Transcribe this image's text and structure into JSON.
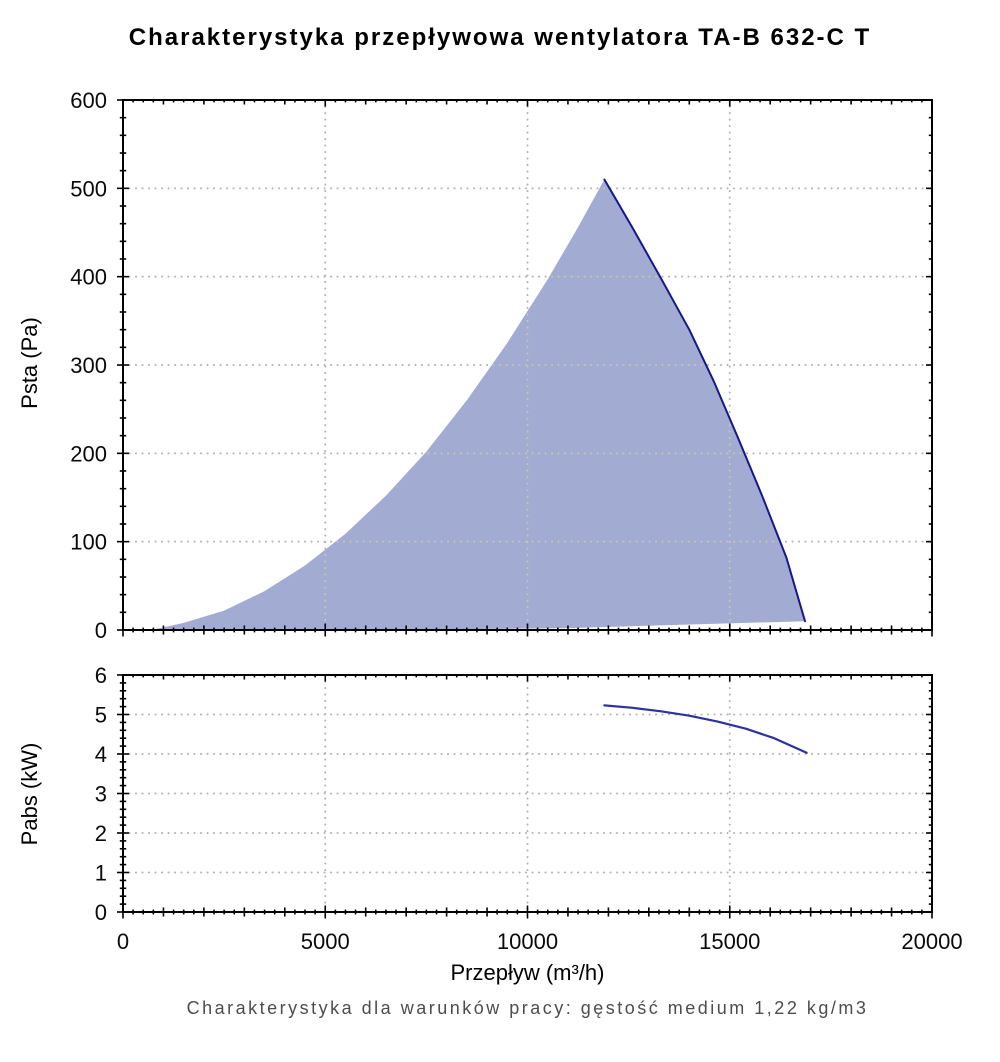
{
  "page": {
    "title": "Charakterystyka przepływowa wentylatora TA-B 632-C T",
    "xlabel": "Przepływ (m³/h)",
    "caption": "Charakterystyka dla warunków pracy: gęstość medium 1,22 kg/m3"
  },
  "colors": {
    "envelope_fill": "#a2abd2",
    "envelope_edge": "#14188e",
    "power_line": "#2c31a3",
    "grid": "#b3b3b3",
    "grid_on_fill": "#cdc6a4",
    "axis": "#000000",
    "tick_label": "#0a0a0a",
    "caption_text": "#4d4d4d"
  },
  "chart_data": [
    {
      "type": "area",
      "name": "fan-pressure-envelope-chart",
      "ylabel": "Psta (Pa)",
      "xlim": [
        0,
        20000
      ],
      "ylim": [
        0,
        600
      ],
      "grid": "dotted",
      "xticks": [
        {
          "v": 0,
          "label": "0"
        },
        {
          "v": 5000,
          "label": "5000"
        },
        {
          "v": 10000,
          "label": "10000"
        },
        {
          "v": 15000,
          "label": "15000"
        },
        {
          "v": 20000,
          "label": "20000"
        }
      ],
      "show_x_labels": false,
      "yticks": [
        {
          "v": 0,
          "label": "0"
        },
        {
          "v": 100,
          "label": "100"
        },
        {
          "v": 200,
          "label": "200"
        },
        {
          "v": 300,
          "label": "300"
        },
        {
          "v": 400,
          "label": "400"
        },
        {
          "v": 500,
          "label": "500"
        },
        {
          "v": 600,
          "label": "600"
        }
      ],
      "y_major_step": 100,
      "y_minor_step": 20,
      "x_mid_step": 1000,
      "x_minor_step": 250,
      "x_grid": [
        5000,
        10000,
        15000
      ],
      "peak": {
        "x": 11900,
        "y": 510
      },
      "series": {
        "upper_boundary": [
          [
            700,
            0
          ],
          [
            1500,
            8
          ],
          [
            2500,
            22
          ],
          [
            3500,
            44
          ],
          [
            4500,
            73
          ],
          [
            5500,
            109
          ],
          [
            6500,
            152
          ],
          [
            7500,
            202
          ],
          [
            8500,
            260
          ],
          [
            9500,
            325
          ],
          [
            10500,
            397
          ],
          [
            11200,
            452
          ],
          [
            11900,
            510
          ]
        ],
        "right_boundary": [
          [
            11900,
            510
          ],
          [
            12600,
            455
          ],
          [
            13300,
            398
          ],
          [
            14000,
            340
          ],
          [
            14600,
            282
          ],
          [
            15200,
            218
          ],
          [
            15800,
            152
          ],
          [
            16400,
            82
          ],
          [
            16860,
            10
          ]
        ],
        "lower_boundary": [
          [
            700,
            0
          ],
          [
            6000,
            0
          ],
          [
            10900,
            2
          ],
          [
            16860,
            10
          ]
        ]
      }
    },
    {
      "type": "line",
      "name": "fan-power-curve-chart",
      "ylabel": "Pabs (kW)",
      "xlim": [
        0,
        20000
      ],
      "ylim": [
        0,
        6
      ],
      "grid": "dotted",
      "xticks": [
        {
          "v": 0,
          "label": "0"
        },
        {
          "v": 5000,
          "label": "5000"
        },
        {
          "v": 10000,
          "label": "10000"
        },
        {
          "v": 15000,
          "label": "15000"
        },
        {
          "v": 20000,
          "label": "20000"
        }
      ],
      "show_x_labels": true,
      "yticks": [
        {
          "v": 0,
          "label": "0"
        },
        {
          "v": 1,
          "label": "1"
        },
        {
          "v": 2,
          "label": "2"
        },
        {
          "v": 3,
          "label": "3"
        },
        {
          "v": 4,
          "label": "4"
        },
        {
          "v": 5,
          "label": "5"
        },
        {
          "v": 6,
          "label": "6"
        }
      ],
      "y_major_step": 1,
      "y_minor_step": 0.2,
      "x_mid_step": 1000,
      "x_minor_step": 250,
      "x_grid": [
        5000,
        10000,
        15000
      ],
      "points": [
        [
          11900,
          5.23
        ],
        [
          12600,
          5.17
        ],
        [
          13300,
          5.08
        ],
        [
          14000,
          4.97
        ],
        [
          14700,
          4.82
        ],
        [
          15400,
          4.64
        ],
        [
          16100,
          4.4
        ],
        [
          16900,
          4.03
        ]
      ]
    }
  ]
}
